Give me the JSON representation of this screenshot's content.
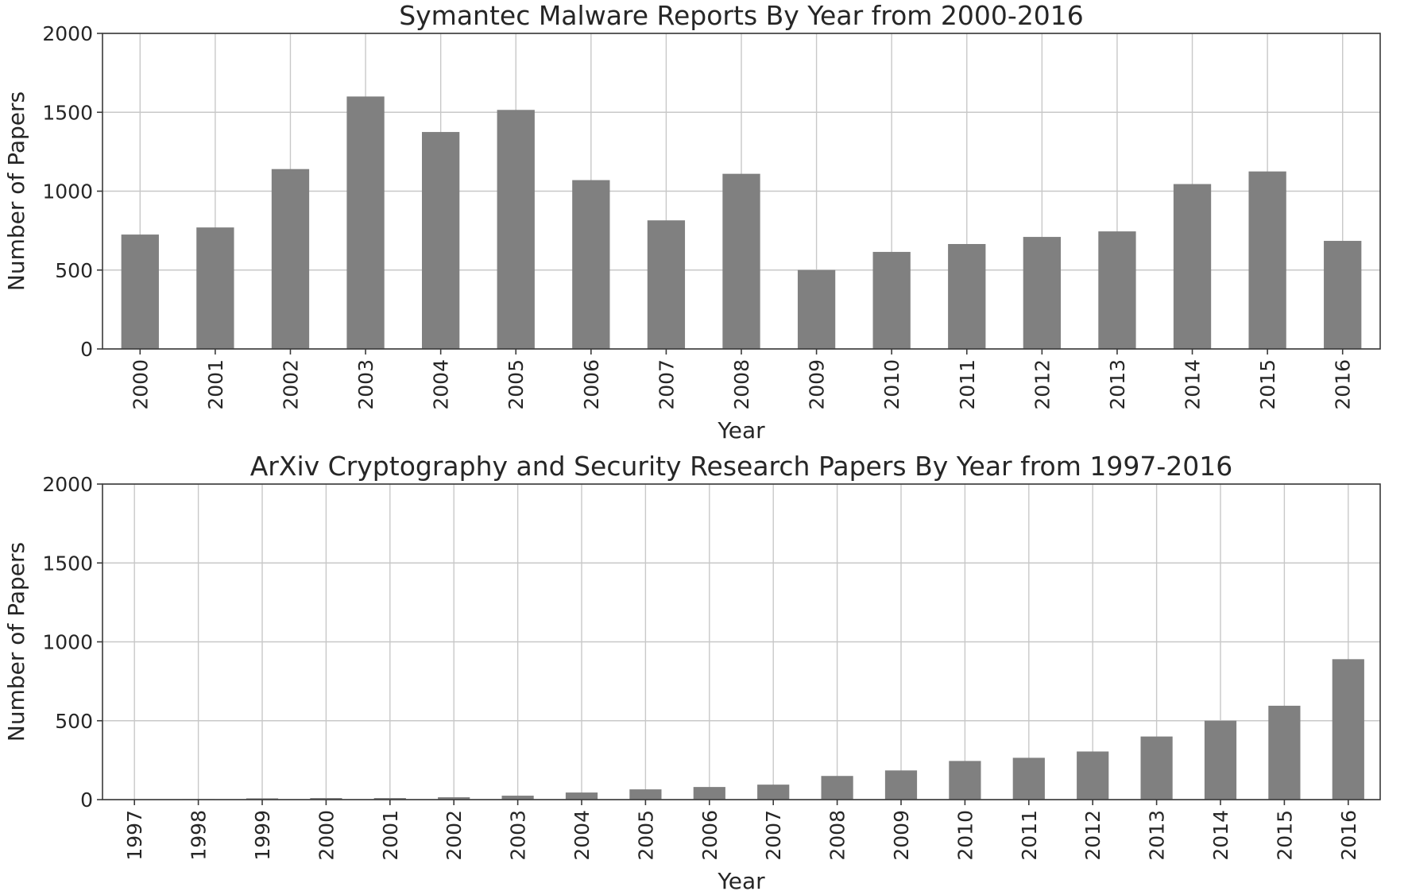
{
  "chart_data": [
    {
      "type": "bar",
      "title": "Symantec Malware Reports By Year from 2000-2016",
      "xlabel": "Year",
      "ylabel": "Number of Papers",
      "ylim": [
        0,
        2000
      ],
      "yticks": [
        0,
        500,
        1000,
        1500,
        2000
      ],
      "grid": true,
      "bar_color": "#808080",
      "categories": [
        "2000",
        "2001",
        "2002",
        "2003",
        "2004",
        "2005",
        "2006",
        "2007",
        "2008",
        "2009",
        "2010",
        "2011",
        "2012",
        "2013",
        "2014",
        "2015",
        "2016"
      ],
      "values": [
        725,
        770,
        1140,
        1600,
        1375,
        1515,
        1070,
        815,
        1110,
        500,
        615,
        665,
        710,
        745,
        1045,
        1125,
        685
      ]
    },
    {
      "type": "bar",
      "title": "ArXiv Cryptography and Security Research Papers By Year from 1997-2016",
      "xlabel": "Year",
      "ylabel": "Number of Papers",
      "ylim": [
        0,
        2000
      ],
      "yticks": [
        0,
        500,
        1000,
        1500,
        2000
      ],
      "grid": true,
      "bar_color": "#808080",
      "categories": [
        "1997",
        "1998",
        "1999",
        "2000",
        "2001",
        "2002",
        "2003",
        "2004",
        "2005",
        "2006",
        "2007",
        "2008",
        "2009",
        "2010",
        "2011",
        "2012",
        "2013",
        "2014",
        "2015",
        "2016"
      ],
      "values": [
        2,
        3,
        8,
        10,
        10,
        15,
        25,
        45,
        65,
        80,
        95,
        150,
        185,
        245,
        265,
        305,
        400,
        500,
        595,
        890
      ]
    }
  ]
}
